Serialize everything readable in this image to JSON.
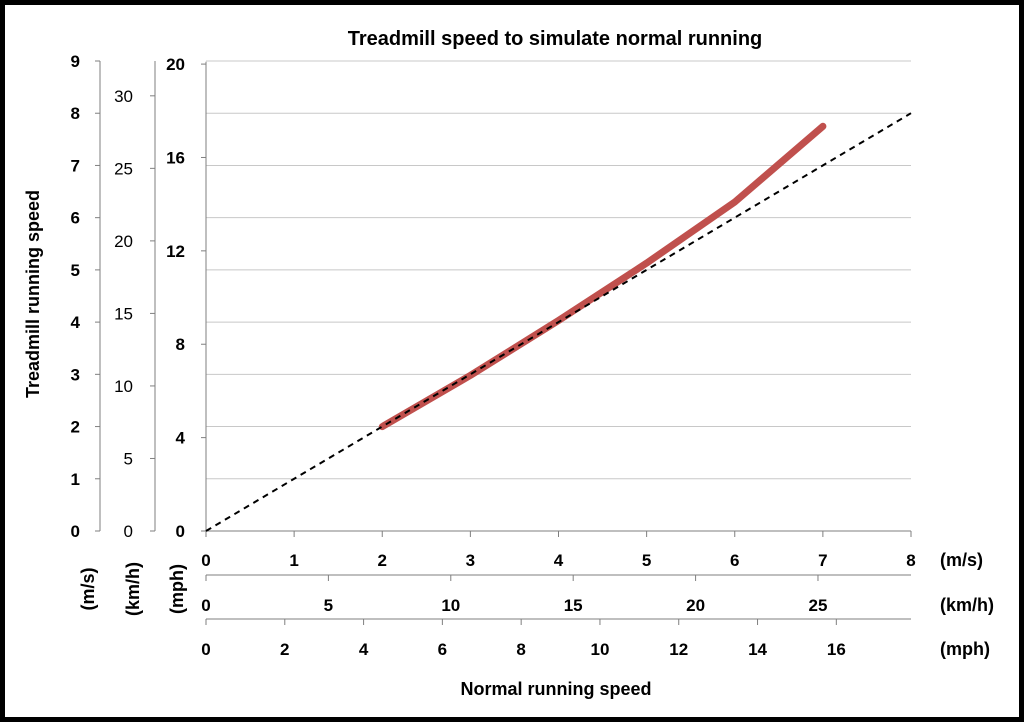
{
  "chart_data": {
    "type": "line",
    "title": "Treadmill speed to simulate normal running",
    "xlabel": "Normal running speed",
    "ylabel": "Treadmill running speed",
    "grid": true,
    "x_axes": [
      {
        "unit": "(m/s)",
        "ticks": [
          0,
          1,
          2,
          3,
          4,
          5,
          6,
          7,
          8
        ],
        "range": [
          0,
          8
        ],
        "per_ms": 1
      },
      {
        "unit": "(km/h)",
        "ticks": [
          0,
          5,
          10,
          15,
          20,
          25
        ],
        "range": [
          0,
          28.8
        ],
        "per_ms": 3.6
      },
      {
        "unit": "(mph)",
        "ticks": [
          0,
          2,
          4,
          6,
          8,
          10,
          12,
          14,
          16
        ],
        "range": [
          0,
          17.9
        ],
        "per_ms": 2.23694
      }
    ],
    "y_axes": [
      {
        "unit": "(m/s)",
        "ticks": [
          0,
          1,
          2,
          3,
          4,
          5,
          6,
          7,
          8,
          9
        ],
        "range": [
          0,
          9
        ],
        "per_ms": 1
      },
      {
        "unit": "(km/h)",
        "ticks": [
          0,
          5,
          10,
          15,
          20,
          25,
          30
        ],
        "range": [
          0,
          32.4
        ],
        "per_ms": 3.6
      },
      {
        "unit": "(mph)",
        "ticks": [
          0,
          4,
          8,
          12,
          16,
          20
        ],
        "range": [
          0,
          20.1
        ],
        "per_ms": 2.23694
      }
    ],
    "series": [
      {
        "color": "#c0504d",
        "style": "solid",
        "x": [
          2,
          3,
          4,
          5,
          6,
          7
        ],
        "y": [
          2,
          2.98,
          4.03,
          5.13,
          6.3,
          7.75
        ]
      },
      {
        "color": "#000000",
        "style": "dashed",
        "x": [
          0,
          8
        ],
        "y": [
          0,
          8
        ]
      }
    ]
  }
}
